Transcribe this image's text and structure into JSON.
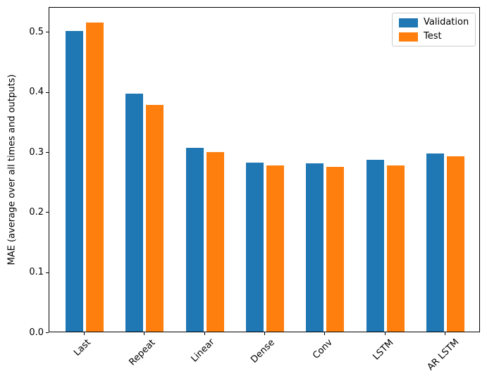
{
  "chart_data": {
    "type": "bar",
    "title": "",
    "xlabel": "",
    "ylabel": "MAE (average over all times and outputs)",
    "categories": [
      "Last",
      "Repeat",
      "Linear",
      "Dense",
      "Conv",
      "LSTM",
      "AR LSTM"
    ],
    "series": [
      {
        "name": "Validation",
        "color": "#1f77b4",
        "values": [
          0.501,
          0.396,
          0.306,
          0.281,
          0.28,
          0.286,
          0.297
        ]
      },
      {
        "name": "Test",
        "color": "#ff7f0e",
        "values": [
          0.515,
          0.377,
          0.299,
          0.277,
          0.274,
          0.277,
          0.292
        ]
      }
    ],
    "ylim": [
      0,
      0.5415
    ],
    "yticks": [
      "0.0",
      "0.1",
      "0.2",
      "0.3",
      "0.4",
      "0.5"
    ],
    "x_tick_rotation": 45,
    "grid": false,
    "legend": {
      "position": "upper right",
      "entries": [
        "Validation",
        "Test"
      ]
    }
  }
}
